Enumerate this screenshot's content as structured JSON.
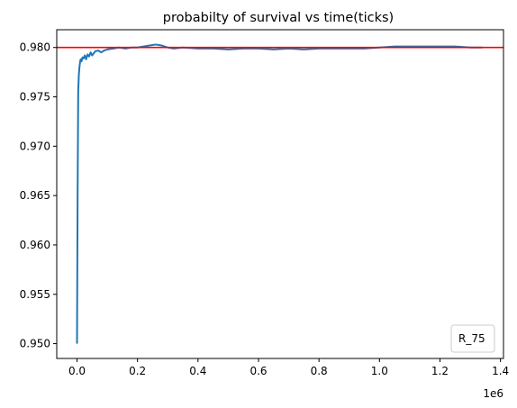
{
  "chart_data": {
    "type": "line",
    "title": "probabilty of survival vs time(ticks)",
    "xlabel": "",
    "ylabel": "",
    "x_offset_label": "1e6",
    "xlim": [
      -0.067,
      1.41
    ],
    "ylim": [
      0.9485,
      0.9818
    ],
    "x_ticks": [
      0.0,
      0.2,
      0.4,
      0.6,
      0.8,
      1.0,
      1.2,
      1.4
    ],
    "x_tick_labels": [
      "0.0",
      "0.2",
      "0.4",
      "0.6",
      "0.8",
      "1.0",
      "1.2",
      "1.4"
    ],
    "y_ticks": [
      0.95,
      0.955,
      0.96,
      0.965,
      0.97,
      0.975,
      0.98
    ],
    "y_tick_labels": [
      "0.950",
      "0.955",
      "0.960",
      "0.965",
      "0.970",
      "0.975",
      "0.980"
    ],
    "grid": false,
    "legend": {
      "position": "lower-right",
      "entries": [
        "R_75"
      ]
    },
    "reference_line": {
      "y": 0.98,
      "color": "#ff0000"
    },
    "series": [
      {
        "color": "#1f77b4",
        "x": [
          0.0,
          0.002,
          0.004,
          0.006,
          0.008,
          0.01,
          0.012,
          0.015,
          0.018,
          0.022,
          0.026,
          0.03,
          0.035,
          0.04,
          0.045,
          0.05,
          0.055,
          0.06,
          0.07,
          0.08,
          0.09,
          0.1,
          0.12,
          0.14,
          0.16,
          0.18,
          0.2,
          0.22,
          0.24,
          0.26,
          0.28,
          0.3,
          0.32,
          0.35,
          0.4,
          0.45,
          0.5,
          0.55,
          0.6,
          0.65,
          0.7,
          0.75,
          0.8,
          0.85,
          0.9,
          0.95,
          1.0,
          1.05,
          1.1,
          1.15,
          1.2,
          1.25,
          1.3,
          1.34
        ],
        "y": [
          0.95,
          0.965,
          0.9755,
          0.9772,
          0.978,
          0.9785,
          0.9788,
          0.9786,
          0.979,
          0.9789,
          0.9792,
          0.9788,
          0.9793,
          0.9791,
          0.9795,
          0.9792,
          0.9794,
          0.9796,
          0.9797,
          0.9795,
          0.9797,
          0.9798,
          0.9799,
          0.98,
          0.9799,
          0.98,
          0.98,
          0.9801,
          0.9802,
          0.9803,
          0.9802,
          0.98,
          0.9799,
          0.98,
          0.9799,
          0.9799,
          0.9798,
          0.9799,
          0.9799,
          0.9798,
          0.9799,
          0.9798,
          0.9799,
          0.9799,
          0.9799,
          0.9799,
          0.98,
          0.9801,
          0.9801,
          0.9801,
          0.9801,
          0.9801,
          0.98,
          0.98
        ]
      }
    ]
  }
}
